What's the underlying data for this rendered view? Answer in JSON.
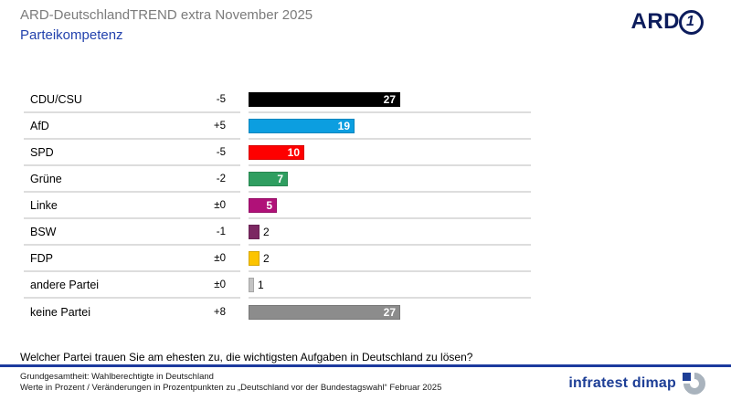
{
  "header": {
    "title": "ARD-DeutschlandTREND extra November 2025",
    "subtitle": "Parteikompetenz",
    "ard_logo_text": "ARD",
    "ard_logo_one": "1"
  },
  "chart_data": {
    "type": "bar",
    "orientation": "horizontal",
    "title": "Parteikompetenz",
    "categories": [
      "CDU/CSU",
      "AfD",
      "SPD",
      "Grüne",
      "Linke",
      "BSW",
      "FDP",
      "andere Partei",
      "keine Partei"
    ],
    "values": [
      27,
      19,
      10,
      7,
      5,
      2,
      2,
      1,
      27
    ],
    "changes": [
      "-5",
      "+5",
      "-5",
      "-2",
      "±0",
      "-1",
      "±0",
      "±0",
      "+8"
    ],
    "colors": [
      "#000000",
      "#0c9ee0",
      "#fe0000",
      "#2f9e60",
      "#b01178",
      "#7c2862",
      "#fcc400",
      "#c3c3c3",
      "#8c8c8c"
    ],
    "label_inside": [
      true,
      true,
      true,
      true,
      true,
      false,
      false,
      false,
      true
    ],
    "xlim": [
      0,
      50
    ],
    "grid": false,
    "legend": "none",
    "value_unit": "Prozent",
    "change_unit": "Prozentpunkte"
  },
  "question": "Welcher Partei trauen Sie am ehesten zu, die wichtigsten Aufgaben in Deutschland zu lösen?",
  "footer": {
    "line1": "Grundgesamtheit: Wahlberechtigte in Deutschland",
    "line2": "Werte in Prozent / Veränderungen in Prozentpunkten zu „Deutschland vor der Bundestagswahl“ Februar 2025",
    "brand": "infratest dimap"
  }
}
